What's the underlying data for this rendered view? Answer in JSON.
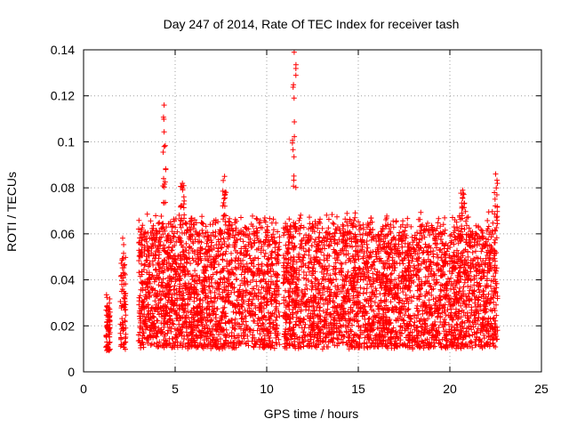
{
  "chart_data": {
    "type": "scatter",
    "title": "Day 247 of 2014, Rate Of TEC Index for receiver tash",
    "xlabel": "GPS time / hours",
    "ylabel": "ROTI / TECUs",
    "xlim": [
      0,
      25
    ],
    "ylim": [
      0,
      0.14
    ],
    "xticks": [
      0,
      5,
      10,
      15,
      20,
      25
    ],
    "yticks": [
      0,
      0.02,
      0.04,
      0.06,
      0.08,
      0.1,
      0.12,
      0.14
    ],
    "xtick_labels": [
      "0",
      "5",
      "10",
      "15",
      "20",
      "25"
    ],
    "ytick_labels": [
      "0",
      "0.02",
      "0.04",
      "0.06",
      "0.08",
      "0.1",
      "0.12",
      "0.14"
    ],
    "grid": true,
    "marker": "+",
    "series": [
      {
        "name": "ROTI",
        "color": "#ff0000",
        "segments": [
          {
            "x_range": [
              1.2,
              1.45
            ],
            "y_range": [
              0.006,
              0.035
            ],
            "peak_y": 0.035
          },
          {
            "x_range": [
              2.0,
              2.3
            ],
            "y_range": [
              0.004,
              0.06
            ],
            "peak_y": 0.06
          },
          {
            "x_range": [
              3.0,
              10.7
            ],
            "y_range": [
              0.003,
              0.07
            ],
            "peak_y": 0.116
          },
          {
            "x_range": [
              10.9,
              22.6
            ],
            "y_range": [
              0.003,
              0.07
            ],
            "peak_y": 0.139
          }
        ],
        "spikes": [
          {
            "x": 4.4,
            "y_range": [
              0.07,
              0.116
            ]
          },
          {
            "x": 5.4,
            "y_range": [
              0.065,
              0.082
            ]
          },
          {
            "x": 7.7,
            "y_range": [
              0.065,
              0.085
            ]
          },
          {
            "x": 11.5,
            "y_range": [
              0.08,
              0.139
            ]
          },
          {
            "x": 20.7,
            "y_range": [
              0.065,
              0.079
            ]
          },
          {
            "x": 22.5,
            "y_range": [
              0.06,
              0.086
            ]
          }
        ]
      }
    ]
  }
}
